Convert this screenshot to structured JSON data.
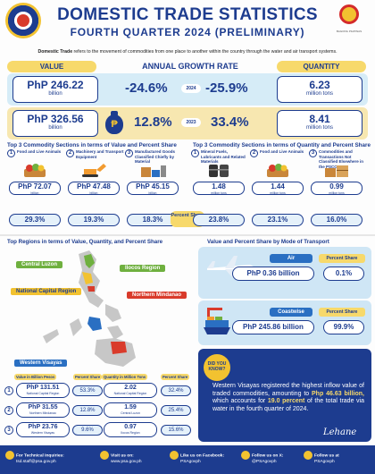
{
  "header": {
    "title": "DOMESTIC TRADE STATISTICS",
    "subtitle": "FOURTH QUARTER 2024 (PRELIMINARY)",
    "intro_bold": "Domestic Trade",
    "intro_rest": " refers to the movement of commodities from one place to another within the country through the water and air transport systems.",
    "logo_right_caption": "BAGONG PILIPINAS"
  },
  "growth": {
    "value_label": "VALUE",
    "growth_label": "ANNUAL GROWTH RATE",
    "quantity_label": "QUANTITY",
    "row_2024": {
      "value": "PhP 246.22",
      "value_unit": "billion",
      "value_growth": "-24.6%",
      "year": "2024",
      "quantity_growth": "-25.9%",
      "quantity": "6.23",
      "quantity_unit": "million tons"
    },
    "row_2023": {
      "value": "PhP 326.56",
      "value_unit": "billion",
      "value_growth": "12.8%",
      "year": "2023",
      "quantity_growth": "33.4%",
      "quantity": "8.41",
      "quantity_unit": "million tons"
    }
  },
  "top_value": {
    "title": "Top 3 Commodity Sections in terms of Value and Percent Share",
    "items": [
      {
        "n": "1",
        "name": "Food and Live Animals",
        "value": "PhP 72.07",
        "unit": "billion",
        "share": "29.3%"
      },
      {
        "n": "2",
        "name": "Machinery and Transport Equipment",
        "value": "PhP 47.48",
        "unit": "billion",
        "share": "19.3%"
      },
      {
        "n": "3",
        "name": "Manufactured Goods Classified Chiefly by Material",
        "value": "PhP 45.15",
        "unit": "billion",
        "share": "18.3%"
      }
    ]
  },
  "top_quantity": {
    "title": "Top 3 Commodity Sections in terms of Quantity and Percent Share",
    "items": [
      {
        "n": "1",
        "name": "Mineral Fuels, Lubricants and Related Materials",
        "value": "1.48",
        "unit": "million tons",
        "share": "23.8%"
      },
      {
        "n": "2",
        "name": "Food and Live Animals",
        "value": "1.44",
        "unit": "million tons",
        "share": "23.1%"
      },
      {
        "n": "3",
        "name": "Commodities and Transactions Not Classified Elsewhere in the PSCC",
        "value": "0.99",
        "unit": "million tons",
        "share": "16.0%"
      }
    ]
  },
  "percent_share_label": "Percent Share",
  "regions": {
    "title": "Top Regions in terms of Value, Quantity, and Percent Share",
    "map_tags": [
      "Central Luzon",
      "Ilocos Region",
      "National Capital Region",
      "Northern Mindanao",
      "Western Visayas"
    ],
    "headers": [
      "Value in Billion Pesos",
      "Percent Share",
      "Quantity in Million Tons",
      "Percent Share"
    ],
    "rows": [
      {
        "n": "1",
        "value": "PhP 131.51",
        "value_region": "National Capital Region",
        "vshare": "53.3%",
        "qty": "2.02",
        "qty_region": "National Capital Region",
        "qshare": "32.4%"
      },
      {
        "n": "2",
        "value": "PhP 31.55",
        "value_region": "Northern Mindanao",
        "vshare": "12.8%",
        "qty": "1.59",
        "qty_region": "Central Luzon",
        "qshare": "25.4%"
      },
      {
        "n": "3",
        "value": "PhP 23.76",
        "value_region": "Western Visayas",
        "vshare": "9.6%",
        "qty": "0.97",
        "qty_region": "Ilocos Region",
        "qshare": "15.6%"
      }
    ]
  },
  "modes": {
    "title": "Value and Percent Share by Mode of Transport",
    "share_label": "Percent Share",
    "air": {
      "label": "Air",
      "value": "PhP 0.36 billion",
      "share": "0.1%"
    },
    "coastwise": {
      "label": "Coastwise",
      "value": "PhP 245.86 billion",
      "share": "99.9%"
    }
  },
  "did_you_know": {
    "badge": "DID YOU KNOW?",
    "text_1": "Western Visayas registered the highest inflow value of traded commodities, amounting to ",
    "bold_1": "Php 46.63 billion,",
    "text_2": " which accounts for ",
    "bold_2": "19.0 percent",
    "text_3": " of the total trade via water in the fourth quarter of 2024.",
    "signature": "Lehane"
  },
  "footer": {
    "inquiries_label": "For Technical Inquiries:",
    "inquiries_email": "tsd.staff@psa.gov.ph",
    "visit_label": "Visit us on:",
    "visit_url": "www.psa.gov.ph",
    "facebook_label": "Like us on Facebook:",
    "facebook_handle": "PSAgovph",
    "x_label": "Follow us on X:",
    "x_handle": "@PSAgovph",
    "more_label": "Follow us at",
    "more_handle": "PSAgovph"
  }
}
